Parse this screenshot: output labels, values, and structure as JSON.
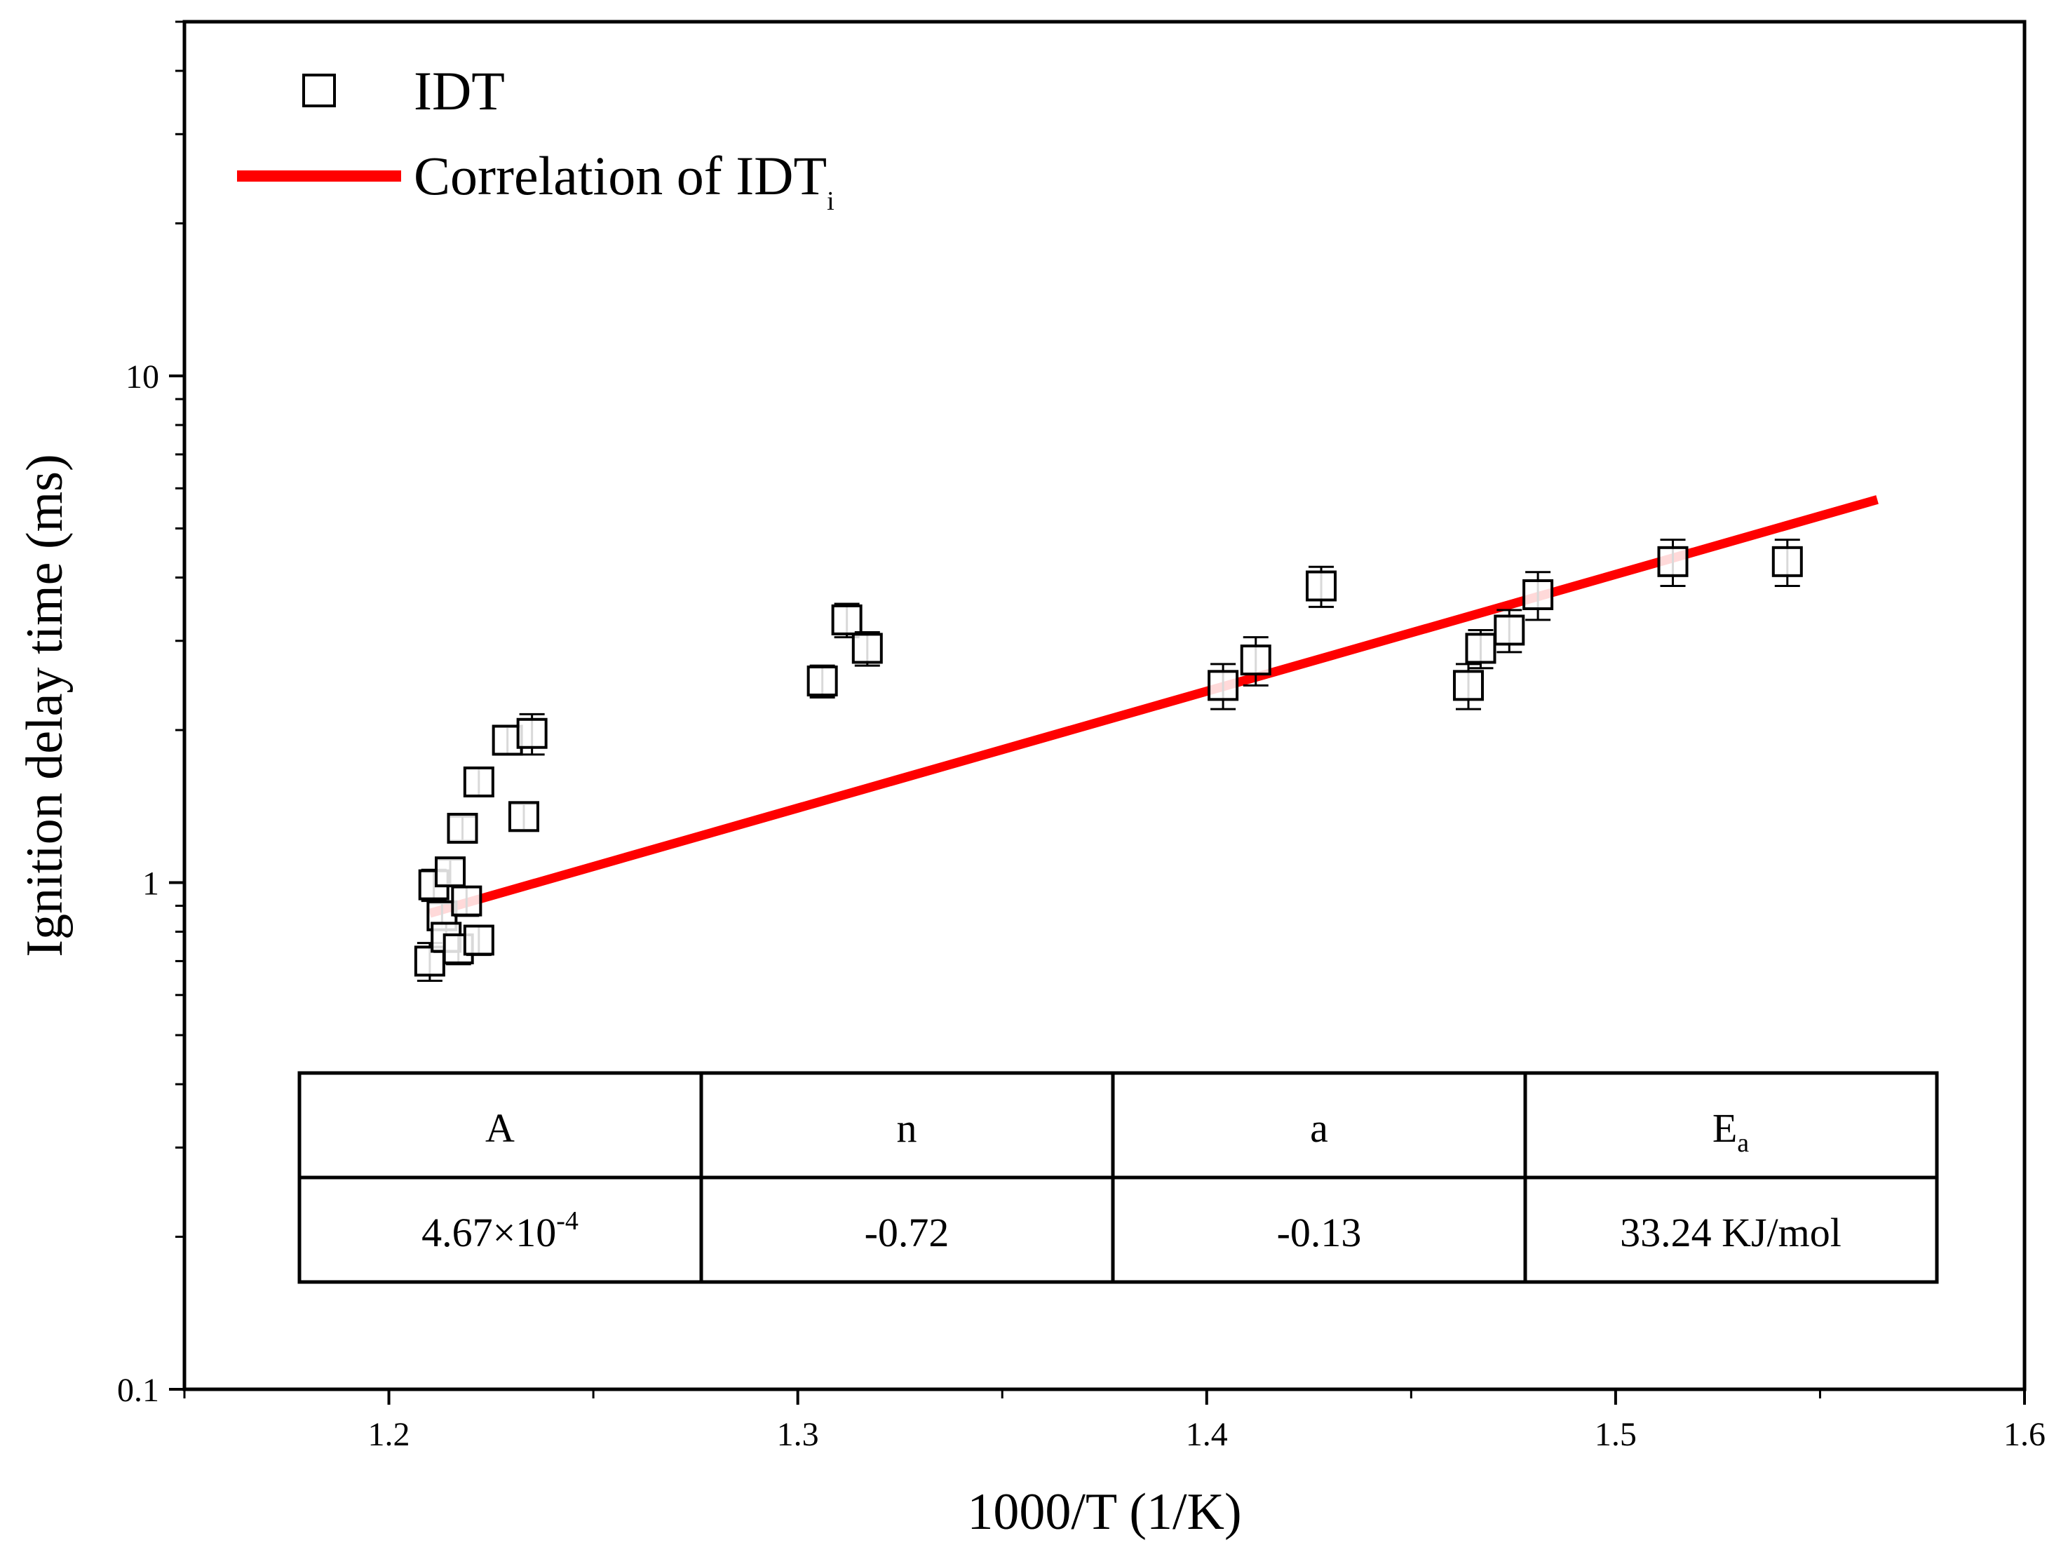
{
  "chart_data": {
    "type": "scatter",
    "title": "",
    "xlabel": "1000/T (1/K)",
    "ylabel": "Ignition delay time (ms)",
    "xlim": [
      1.15,
      1.6
    ],
    "ylim": [
      0.1,
      50
    ],
    "yscale": "log",
    "x_ticks": [
      1.2,
      1.3,
      1.4,
      1.5,
      1.6
    ],
    "x_tick_labels": [
      "1.2",
      "1.3",
      "1.4",
      "1.5",
      "1.6"
    ],
    "y_ticks": [
      0.1,
      1,
      10
    ],
    "y_tick_labels": [
      "0.1",
      "1",
      "10"
    ],
    "legend": {
      "placement": "top-left",
      "entries": [
        {
          "label": "IDT",
          "marker": "open-square"
        },
        {
          "label_main": "Correlation of IDT",
          "label_sub": "i",
          "marker": "line",
          "color": "#ff0000"
        }
      ]
    },
    "series": [
      {
        "name": "IDT",
        "marker": "open-square",
        "points": [
          {
            "x": 1.21,
            "y": 0.7,
            "err": 0.06
          },
          {
            "x": 1.211,
            "y": 0.99,
            "err": 0.07
          },
          {
            "x": 1.213,
            "y": 0.86,
            "err": 0.05
          },
          {
            "x": 1.214,
            "y": 0.78,
            "err": 0.05
          },
          {
            "x": 1.215,
            "y": 1.05,
            "err": 0.06
          },
          {
            "x": 1.217,
            "y": 0.74,
            "err": 0.05
          },
          {
            "x": 1.218,
            "y": 1.28,
            "err": 0.07
          },
          {
            "x": 1.219,
            "y": 0.92,
            "err": 0.06
          },
          {
            "x": 1.222,
            "y": 0.77,
            "err": 0.05
          },
          {
            "x": 1.222,
            "y": 1.58,
            "err": 0.1
          },
          {
            "x": 1.229,
            "y": 1.91,
            "err": 0.12
          },
          {
            "x": 1.233,
            "y": 1.35,
            "err": 0.08
          },
          {
            "x": 1.235,
            "y": 1.97,
            "err": 0.18
          },
          {
            "x": 1.306,
            "y": 2.5,
            "err": 0.18
          },
          {
            "x": 1.312,
            "y": 3.3,
            "err": 0.25
          },
          {
            "x": 1.317,
            "y": 2.9,
            "err": 0.22
          },
          {
            "x": 1.404,
            "y": 2.45,
            "err": 0.25
          },
          {
            "x": 1.412,
            "y": 2.75,
            "err": 0.3
          },
          {
            "x": 1.428,
            "y": 3.85,
            "err": 0.35
          },
          {
            "x": 1.464,
            "y": 2.45,
            "err": 0.25
          },
          {
            "x": 1.467,
            "y": 2.9,
            "err": 0.25
          },
          {
            "x": 1.474,
            "y": 3.15,
            "err": 0.3
          },
          {
            "x": 1.481,
            "y": 3.7,
            "err": 0.4
          },
          {
            "x": 1.514,
            "y": 4.3,
            "err": 0.45
          },
          {
            "x": 1.542,
            "y": 4.3,
            "err": 0.45
          }
        ]
      },
      {
        "name": "Correlation of IDTi",
        "type": "line",
        "color": "#ff0000",
        "x": [
          1.21,
          1.564
        ],
        "y": [
          0.87,
          5.7
        ]
      }
    ],
    "table": {
      "headers": [
        {
          "main": "A",
          "sub": ""
        },
        {
          "main": "n",
          "sub": ""
        },
        {
          "main": "a",
          "sub": ""
        },
        {
          "main": "E",
          "sub": "a"
        }
      ],
      "values": [
        {
          "main": "4.67×10",
          "sup": "-4"
        },
        {
          "main": "-0.72",
          "sup": ""
        },
        {
          "main": "-0.13",
          "sup": ""
        },
        {
          "main": "33.24 KJ/mol",
          "sup": ""
        }
      ]
    }
  }
}
